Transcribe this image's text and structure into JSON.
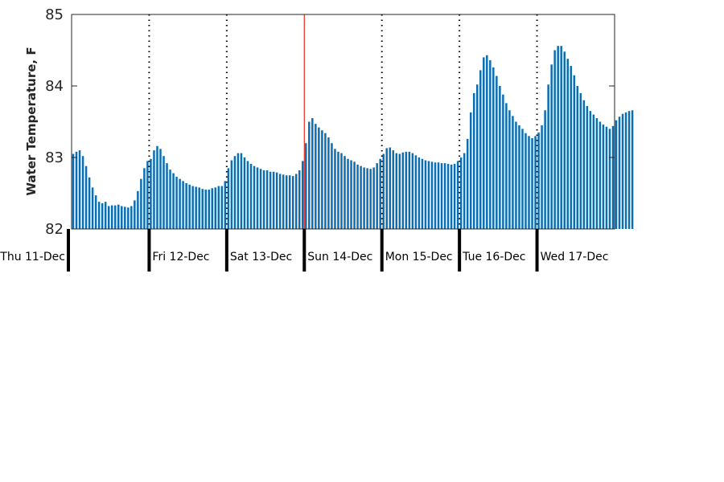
{
  "chart_data": {
    "type": "bar",
    "title": "",
    "xlabel": "",
    "ylabel": "Water Temperature, F",
    "ylim": [
      82,
      85
    ],
    "yticks": [
      82,
      83,
      84,
      85
    ],
    "grid": false,
    "bar_color": "#0a6eb4",
    "day_labels": [
      "Thu 11-Dec",
      "Fri 12-Dec",
      "Sat 13-Dec",
      "Sun 14-Dec",
      "Mon 15-Dec",
      "Tue 16-Dec",
      "Wed 17-Dec"
    ],
    "day_divider_color": "#000000",
    "current_time_marker": {
      "color": "#e8291c",
      "position_hours": 72
    },
    "x_range_hours": [
      0,
      168
    ],
    "series": [
      {
        "interval_hours": 1,
        "values": [
          83.05,
          83.08,
          83.1,
          83.02,
          82.88,
          82.72,
          82.58,
          82.47,
          82.38,
          82.36,
          82.38,
          82.32,
          82.33,
          82.33,
          82.34,
          82.32,
          82.31,
          82.3,
          82.32,
          82.4,
          82.53,
          82.7,
          82.85,
          82.95,
          82.98,
          83.1,
          83.16,
          83.12,
          83.02,
          82.92,
          82.83,
          82.78,
          82.73,
          82.7,
          82.67,
          82.64,
          82.62,
          82.6,
          82.59,
          82.58,
          82.56,
          82.55,
          82.55,
          82.57,
          82.58,
          82.6,
          82.6,
          82.67,
          82.85,
          82.96,
          83.02,
          83.06,
          83.06,
          83.0,
          82.95,
          82.91,
          82.88,
          82.86,
          82.84,
          82.82,
          82.82,
          82.8,
          82.8,
          82.79,
          82.77,
          82.76,
          82.75,
          82.75,
          82.74,
          82.77,
          82.82,
          82.95,
          83.2,
          83.5,
          83.55,
          83.47,
          83.42,
          83.38,
          83.34,
          83.28,
          83.2,
          83.12,
          83.08,
          83.06,
          83.02,
          82.98,
          82.96,
          82.94,
          82.9,
          82.88,
          82.86,
          82.85,
          82.84,
          82.86,
          82.92,
          82.98,
          83.05,
          83.13,
          83.14,
          83.1,
          83.06,
          83.05,
          83.07,
          83.08,
          83.08,
          83.06,
          83.03,
          83.0,
          82.98,
          82.96,
          82.95,
          82.94,
          82.93,
          82.93,
          82.92,
          82.92,
          82.91,
          82.9,
          82.91,
          82.95,
          83.0,
          83.06,
          83.26,
          83.63,
          83.9,
          84.02,
          84.22,
          84.4,
          84.43,
          84.36,
          84.26,
          84.14,
          84.0,
          83.88,
          83.76,
          83.66,
          83.58,
          83.5,
          83.45,
          83.4,
          83.34,
          83.3,
          83.27,
          83.3,
          83.35,
          83.45,
          83.66,
          84.02,
          84.3,
          84.5,
          84.56,
          84.56,
          84.48,
          84.38,
          84.28,
          84.15,
          84.0,
          83.9,
          83.8,
          83.72,
          83.65,
          83.6,
          83.55,
          83.5,
          83.46,
          83.43,
          83.4,
          83.44,
          83.52,
          83.57,
          83.61,
          83.63,
          83.65,
          83.66
        ]
      }
    ]
  }
}
